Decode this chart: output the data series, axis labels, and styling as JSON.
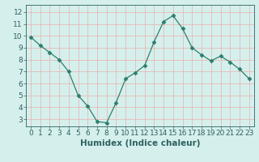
{
  "x": [
    0,
    1,
    2,
    3,
    4,
    5,
    6,
    7,
    8,
    9,
    10,
    11,
    12,
    13,
    14,
    15,
    16,
    17,
    18,
    19,
    20,
    21,
    22,
    23
  ],
  "y": [
    9.9,
    9.2,
    8.6,
    8.0,
    7.0,
    5.0,
    4.1,
    2.8,
    2.7,
    4.4,
    6.4,
    6.9,
    7.5,
    9.5,
    11.2,
    11.7,
    10.6,
    9.0,
    8.4,
    7.9,
    8.3,
    7.8,
    7.2,
    6.4
  ],
  "xlabel": "Humidex (Indice chaleur)",
  "xlim": [
    -0.5,
    23.5
  ],
  "ylim": [
    2.4,
    12.6
  ],
  "yticks": [
    3,
    4,
    5,
    6,
    7,
    8,
    9,
    10,
    11,
    12
  ],
  "xticks": [
    0,
    1,
    2,
    3,
    4,
    5,
    6,
    7,
    8,
    9,
    10,
    11,
    12,
    13,
    14,
    15,
    16,
    17,
    18,
    19,
    20,
    21,
    22,
    23
  ],
  "line_color": "#2e7d6e",
  "marker": "D",
  "marker_size": 2.5,
  "bg_color": "#d5f0ec",
  "grid_color_major": "#e8b8b8",
  "grid_color_minor": "#e8b8b8",
  "tick_label_fontsize": 6.5,
  "xlabel_fontsize": 7.5
}
